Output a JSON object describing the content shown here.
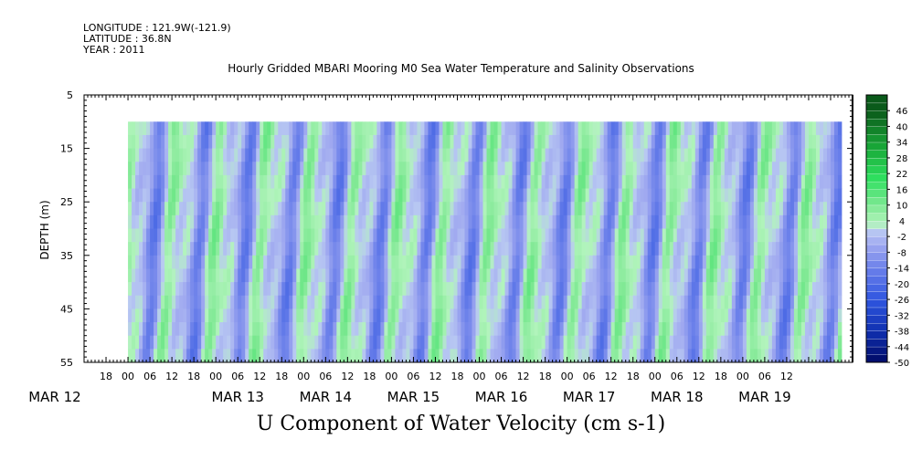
{
  "header": {
    "longitude": "LONGITUDE : 121.9W(-121.9)",
    "latitude": "LATITUDE : 36.8N",
    "year": "YEAR : 2011"
  },
  "chart_data": {
    "type": "heatmap",
    "title": "Hourly Gridded MBARI Mooring M0 Sea Water Temperature and Salinity Observations",
    "subtitle": "U Component of Water Velocity (cm s-1)",
    "ylabel": "DEPTH (m)",
    "xlabel": "",
    "y_axis": {
      "range": [
        5,
        55
      ],
      "inverted": true,
      "ticks": [
        5,
        15,
        25,
        35,
        45,
        55
      ],
      "data_depth_range": [
        10,
        55
      ]
    },
    "x_axis": {
      "range_hours_from_mar12_00": [
        -12,
        198
      ],
      "data_range_hours_from_mar12_00": [
        0,
        195
      ],
      "hour_ticks": [
        "18",
        "00",
        "06",
        "12",
        "18",
        "00",
        "06",
        "12",
        "18",
        "00",
        "06",
        "12",
        "18",
        "00",
        "06",
        "12",
        "18",
        "00",
        "06",
        "12",
        "18",
        "00",
        "06",
        "12",
        "18",
        "00",
        "06",
        "12",
        "18",
        "00",
        "06",
        "12"
      ],
      "date_labels": [
        "MAR 12",
        "MAR 13",
        "MAR 14",
        "MAR 15",
        "MAR 16",
        "MAR 17",
        "MAR 18",
        "MAR 19"
      ]
    },
    "colorbar": {
      "labels": [
        "46",
        "40",
        "34",
        "28",
        "22",
        "16",
        "10",
        "4",
        "-2",
        "-8",
        "-14",
        "-20",
        "-26",
        "-32",
        "-38",
        "-44",
        "-50"
      ],
      "range": [
        -50,
        52
      ],
      "step": 3
    },
    "colors": {
      "strong_negative": "#0a1a8a",
      "negative": "#3355dd",
      "weak_negative": "#9aa4ee",
      "weak_positive": "#9cf0a8",
      "positive": "#22dd55",
      "strong_positive": "#0a5a1a"
    }
  }
}
